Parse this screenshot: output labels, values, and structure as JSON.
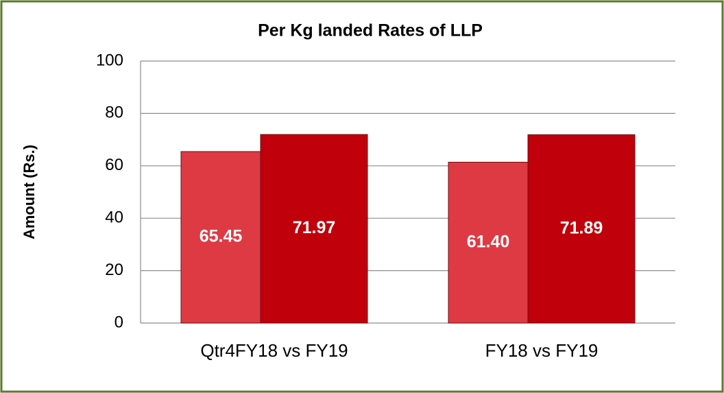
{
  "chart_data": {
    "type": "bar",
    "title": "Per Kg landed Rates of LLP",
    "y_label": "Amount (Rs.)",
    "categories": [
      "Qtr4FY18 vs FY19",
      "FY18 vs FY19"
    ],
    "series": [
      {
        "color": "#de3a44",
        "values": [
          65.45,
          61.4
        ],
        "value_labels": [
          "65.45",
          "61.40"
        ]
      },
      {
        "color": "#c0000b",
        "values": [
          71.97,
          71.89
        ],
        "value_labels": [
          "71.97",
          "71.89"
        ]
      }
    ],
    "ylim": [
      0,
      100
    ],
    "yticks": [
      0,
      20,
      40,
      60,
      80,
      100
    ],
    "grid": true
  }
}
